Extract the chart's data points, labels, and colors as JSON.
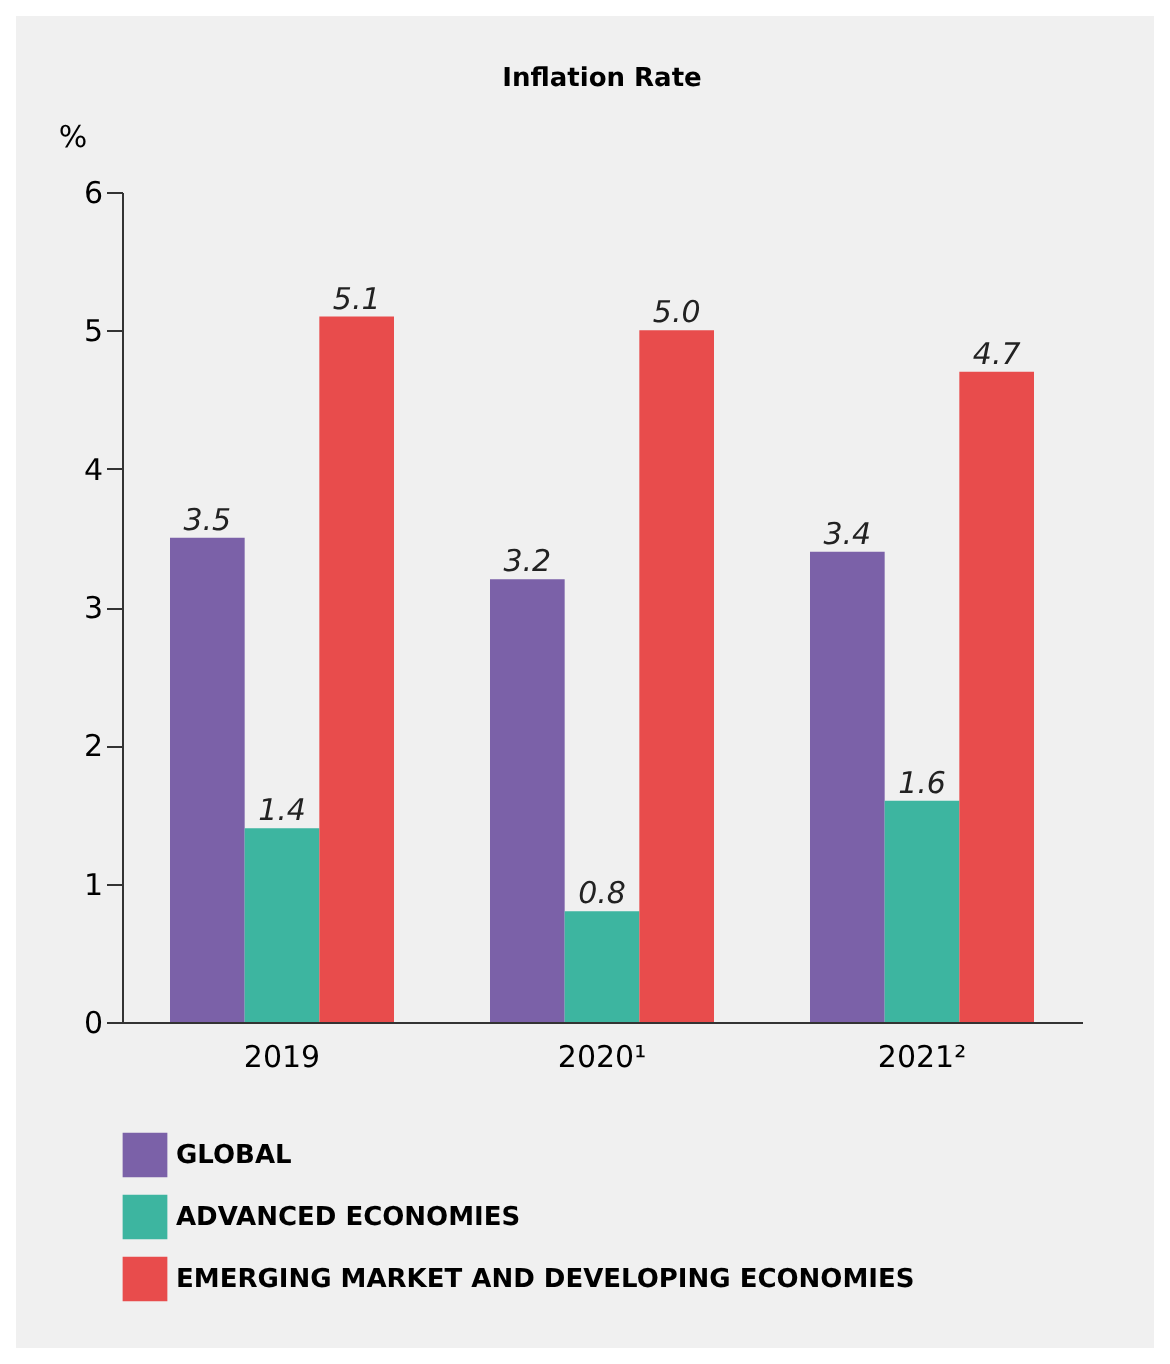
{
  "chart_data": {
    "type": "bar",
    "title": "Inflation Rate",
    "ylabel": "%",
    "categories": [
      "2019",
      "2020¹",
      "2021²"
    ],
    "series": [
      {
        "name": "GLOBAL",
        "color": "#7b61a8",
        "values": [
          3.5,
          3.2,
          3.4
        ],
        "value_labels": [
          "3.5",
          "3.2",
          "3.4"
        ]
      },
      {
        "name": "ADVANCED ECONOMIES",
        "color": "#3db5a0",
        "values": [
          1.4,
          0.8,
          1.6
        ],
        "value_labels": [
          "1.4",
          "0.8",
          "1.6"
        ]
      },
      {
        "name": "EMERGING MARKET AND DEVELOPING ECONOMIES",
        "color": "#e84c4c",
        "values": [
          5.1,
          5.0,
          4.7
        ],
        "value_labels": [
          "5.1",
          "5.0",
          "4.7"
        ]
      }
    ],
    "ylim": [
      0,
      6
    ],
    "yticks": [
      0,
      1,
      2,
      3,
      4,
      5,
      6
    ],
    "grid": false,
    "legend": "bottom"
  }
}
